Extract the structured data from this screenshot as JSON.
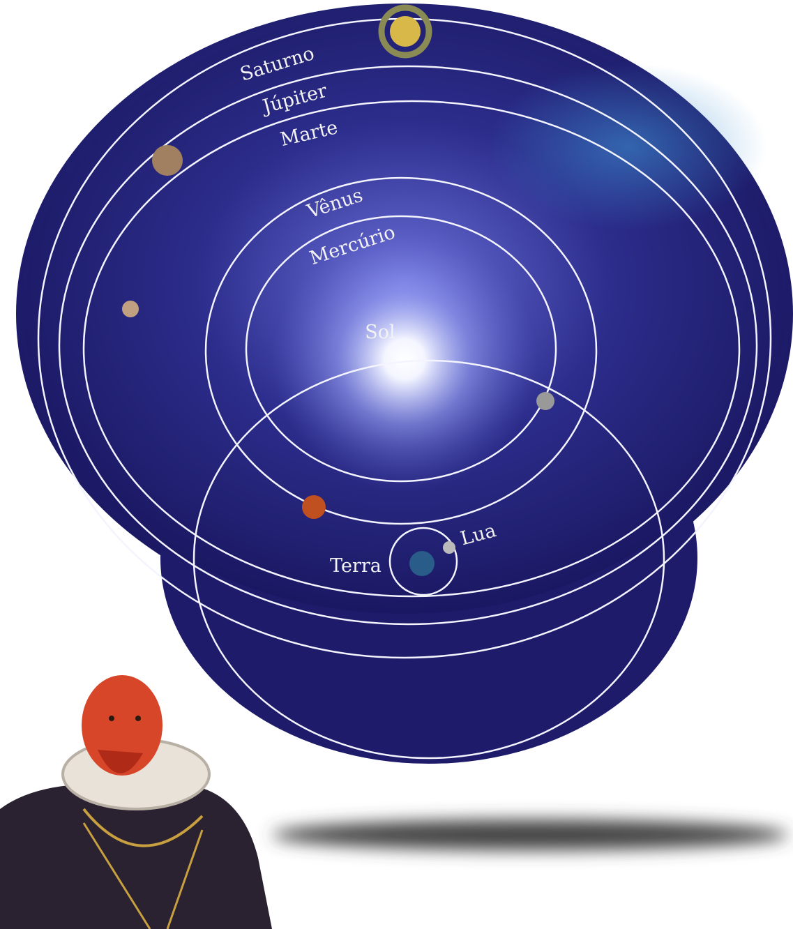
{
  "nodes": [
    {
      "label": "Saturno"
    },
    {
      "label": "Júpiter"
    },
    {
      "label": "Marte"
    },
    {
      "label": "Vênus"
    },
    {
      "label": "Mercúrio"
    },
    {
      "label": "Sol"
    },
    {
      "label": "Terra"
    },
    {
      "label": "Lua"
    }
  ]
}
